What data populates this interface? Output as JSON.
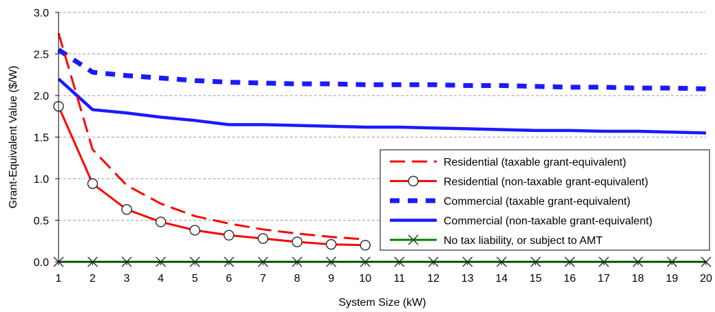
{
  "chart_data": {
    "type": "line",
    "title": "",
    "xlabel": "System Size (kW)",
    "ylabel": "Grant-Equivalent Value ($/W)",
    "xlim": [
      1,
      20
    ],
    "ylim": [
      0,
      3
    ],
    "x_ticks": [
      "1",
      "2",
      "3",
      "4",
      "5",
      "6",
      "7",
      "8",
      "9",
      "10",
      "11",
      "12",
      "13",
      "14",
      "15",
      "16",
      "17",
      "18",
      "19",
      "20"
    ],
    "y_ticks": [
      "0.0",
      "0.5",
      "1.0",
      "1.5",
      "2.0",
      "2.5",
      "3.0"
    ],
    "y_tick_values": [
      0,
      0.5,
      1.0,
      1.5,
      2.0,
      2.5,
      3.0
    ],
    "grid": "horizontal-dashed",
    "legend_position": "lower-right",
    "series": [
      {
        "name": "Residential (taxable grant-equivalent)",
        "color": "#ff0000",
        "style": "dashed",
        "marker": "none",
        "x": [
          1,
          2,
          3,
          4,
          5,
          6,
          7,
          8,
          9,
          10
        ],
        "values": [
          2.75,
          1.35,
          0.92,
          0.7,
          0.55,
          0.46,
          0.39,
          0.34,
          0.3,
          0.27
        ]
      },
      {
        "name": "Residential (non-taxable grant-equivalent)",
        "color": "#ff0000",
        "style": "solid",
        "marker": "circle",
        "x": [
          1,
          2,
          3,
          4,
          5,
          6,
          7,
          8,
          9,
          10
        ],
        "values": [
          1.87,
          0.94,
          0.63,
          0.48,
          0.38,
          0.32,
          0.28,
          0.24,
          0.21,
          0.2
        ]
      },
      {
        "name": "Commercial (taxable grant-equivalent)",
        "color": "#1a1aff",
        "style": "dotted",
        "marker": "none",
        "x": [
          1,
          2,
          3,
          4,
          5,
          6,
          7,
          8,
          9,
          10,
          11,
          12,
          13,
          14,
          15,
          16,
          17,
          18,
          19,
          20
        ],
        "values": [
          2.55,
          2.28,
          2.24,
          2.21,
          2.18,
          2.16,
          2.15,
          2.14,
          2.14,
          2.13,
          2.13,
          2.13,
          2.12,
          2.12,
          2.11,
          2.1,
          2.1,
          2.09,
          2.09,
          2.08
        ]
      },
      {
        "name": "Commercial (non-taxable grant-equivalent)",
        "color": "#1a1aff",
        "style": "solid",
        "marker": "none",
        "x": [
          1,
          2,
          3,
          4,
          5,
          6,
          7,
          8,
          9,
          10,
          11,
          12,
          13,
          14,
          15,
          16,
          17,
          18,
          19,
          20
        ],
        "values": [
          2.2,
          1.83,
          1.79,
          1.74,
          1.7,
          1.65,
          1.65,
          1.64,
          1.63,
          1.62,
          1.62,
          1.61,
          1.6,
          1.59,
          1.58,
          1.58,
          1.57,
          1.57,
          1.56,
          1.55
        ]
      },
      {
        "name": "No tax liability, or subject to AMT",
        "color": "#008000",
        "style": "solid",
        "marker": "x",
        "x": [
          1,
          2,
          3,
          4,
          5,
          6,
          7,
          8,
          9,
          10,
          11,
          12,
          13,
          14,
          15,
          16,
          17,
          18,
          19,
          20
        ],
        "values": [
          0,
          0,
          0,
          0,
          0,
          0,
          0,
          0,
          0,
          0,
          0,
          0,
          0,
          0,
          0,
          0,
          0,
          0,
          0,
          0
        ]
      }
    ]
  }
}
